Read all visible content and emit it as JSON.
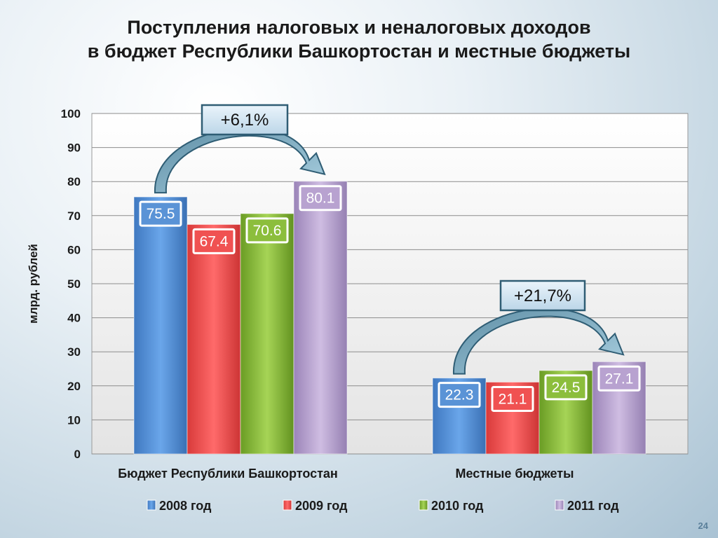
{
  "title": {
    "line1": "Поступления налоговых и неналоговых доходов",
    "line2": "в бюджет Республики Башкортостан и местные бюджеты"
  },
  "page_number": "24",
  "chart_data": {
    "type": "bar",
    "title": "",
    "xlabel": "",
    "ylabel": "млрд. рублей",
    "ylim": [
      0,
      100
    ],
    "yticks": [
      0,
      10,
      20,
      30,
      40,
      50,
      60,
      70,
      80,
      90,
      100
    ],
    "grid": true,
    "legend": "bottom",
    "categories": [
      "Бюджет Республики Башкортостан",
      "Местные бюджеты"
    ],
    "series": [
      {
        "name": "2008 год",
        "values": [
          75.5,
          22.3
        ],
        "labels": [
          "75.5",
          "22.3"
        ],
        "color": "#5a93d6"
      },
      {
        "name": "2009 год",
        "values": [
          67.4,
          21.1
        ],
        "labels": [
          "67.4",
          "21.1"
        ],
        "color": "#f05252"
      },
      {
        "name": "2010 год",
        "values": [
          70.6,
          24.5
        ],
        "labels": [
          "70.6",
          "24.5"
        ],
        "color": "#8cbe3c"
      },
      {
        "name": "2011 год",
        "values": [
          80.1,
          27.1
        ],
        "labels": [
          "80.1",
          "27.1"
        ],
        "color": "#b8a2d0"
      }
    ],
    "annotations": [
      "+6,1%",
      "+21,7%"
    ]
  }
}
